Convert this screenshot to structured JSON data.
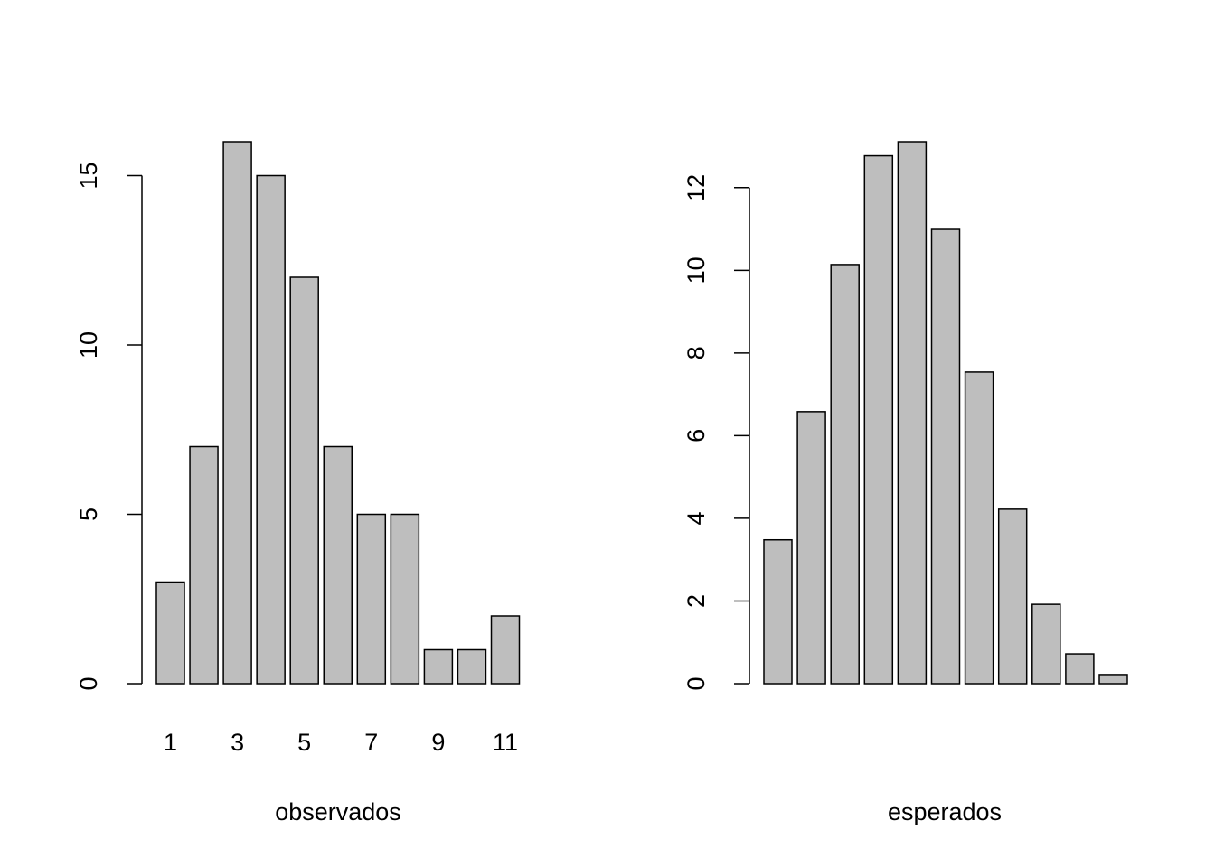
{
  "chart_data": [
    {
      "type": "bar",
      "xlabel": "observados",
      "categories": [
        "1",
        null,
        "3",
        null,
        "5",
        null,
        "7",
        null,
        "9",
        null,
        "11"
      ],
      "values": [
        3,
        7,
        16,
        15,
        12,
        7,
        5,
        5,
        1,
        1,
        2
      ],
      "color": "#bebebe",
      "ylim": [
        0,
        16
      ],
      "yticks": [
        0,
        5,
        10,
        15
      ]
    },
    {
      "type": "bar",
      "xlabel": "esperados",
      "values": [
        3.48,
        6.58,
        10.14,
        12.77,
        13.11,
        10.99,
        7.54,
        4.22,
        1.92,
        0.72,
        0.22
      ],
      "color": "#bebebe",
      "ylim": [
        0,
        13.11
      ],
      "yticks": [
        0,
        2,
        4,
        6,
        8,
        10,
        12
      ]
    }
  ]
}
